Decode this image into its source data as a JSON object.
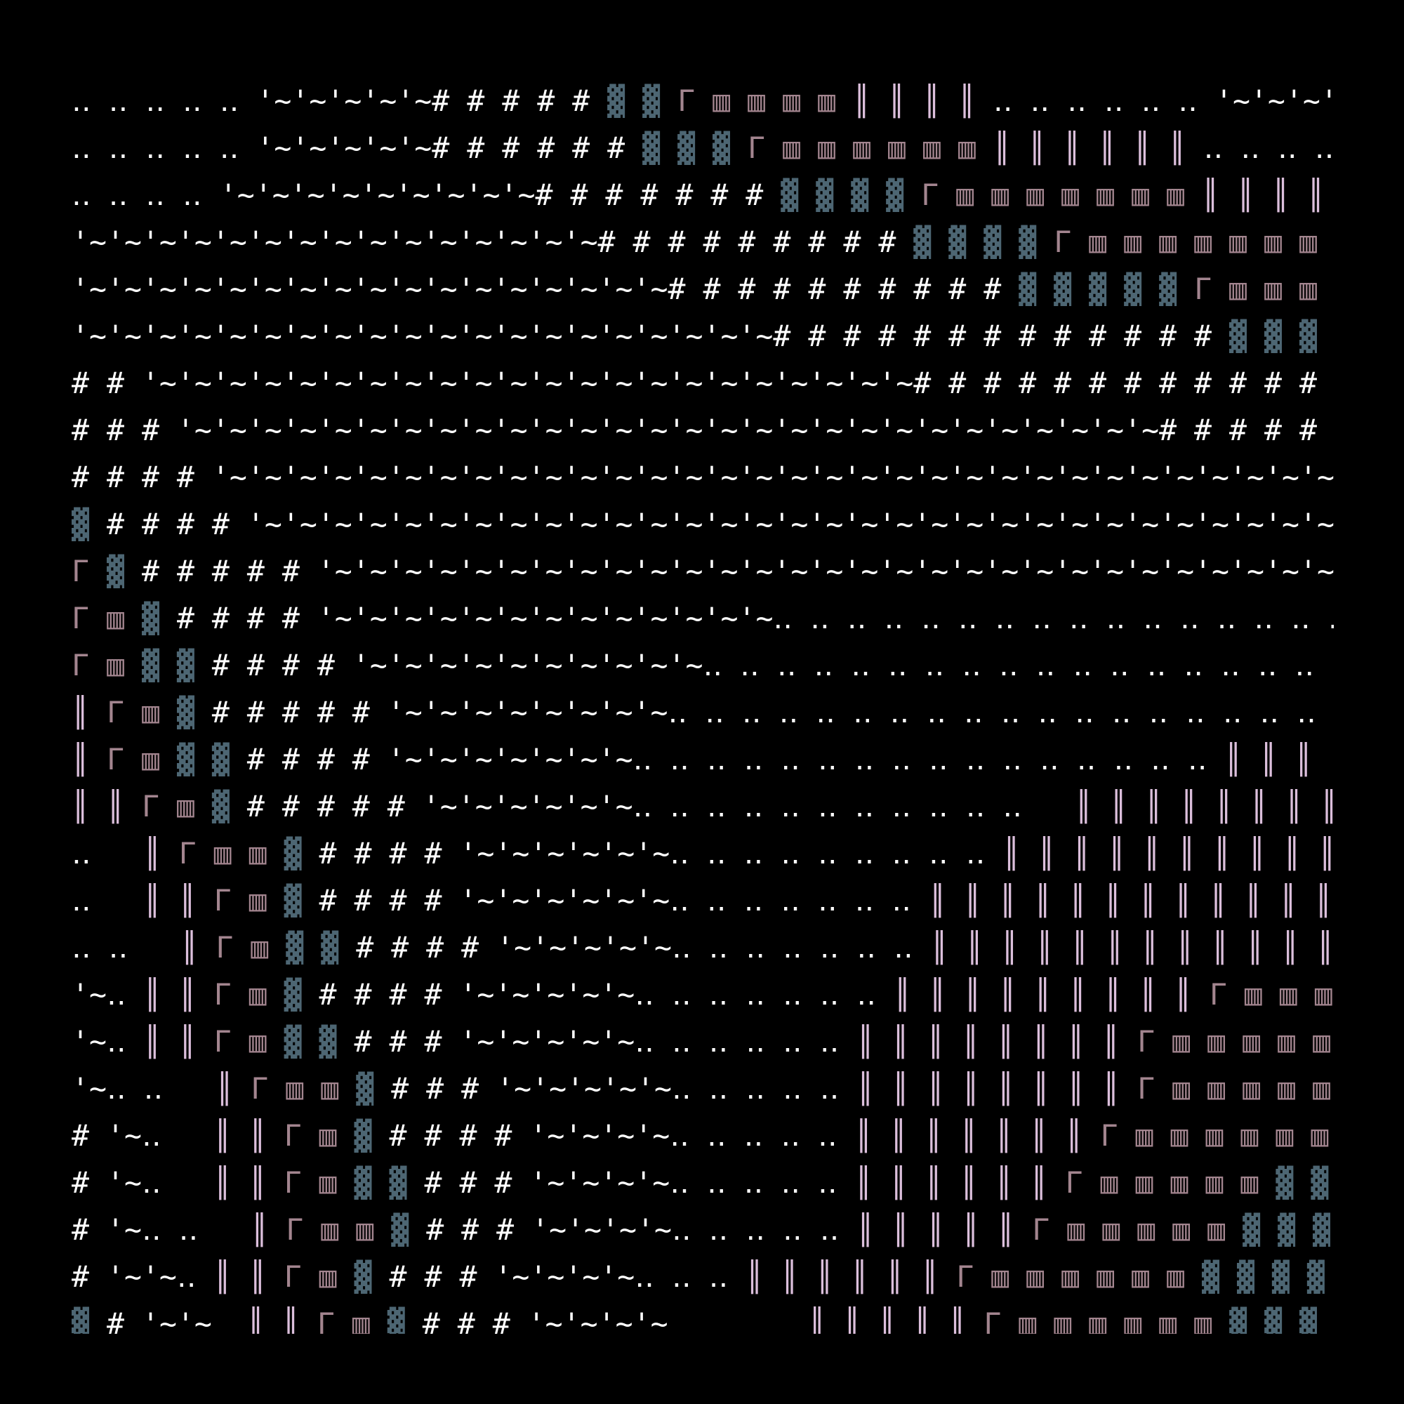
{
  "map": {
    "rows": [
      "‥ ‥ ‥ ‥ ‥ '~'~'~'~'~# # # # # ▓ ▓ Γ ▥ ▥ ▥ ▥ ║ ║ ║ ║ ‥ ‥ ‥ ‥ ‥ ‥ '~'~'~'~",
      "‥ ‥ ‥ ‥ ‥ '~'~'~'~'~# # # # # # ▓ ▓ ▓ Γ ▥ ▥ ▥ ▥ ▥ ▥ ║ ║ ║ ║ ║ ║ ‥ ‥ ‥ ‥ ",
      "‥ ‥ ‥ ‥ '~'~'~'~'~'~'~'~'~# # # # # # # ▓ ▓ ▓ ▓ Γ ▥ ▥ ▥ ▥ ▥ ▥ ▥ ║ ║ ║ ║ ",
      "'~'~'~'~'~'~'~'~'~'~'~'~'~'~'~# # # # # # # # # ▓ ▓ ▓ ▓ Γ ▥ ▥ ▥ ▥ ▥ ▥ ▥ ",
      "'~'~'~'~'~'~'~'~'~'~'~'~'~'~'~'~'~# # # # # # # # # # ▓ ▓ ▓ ▓ ▓ Γ ▥ ▥ ▥ ",
      "'~'~'~'~'~'~'~'~'~'~'~'~'~'~'~'~'~'~'~'~# # # # # # # # # # # # # ▓ ▓ ▓ ",
      "# # '~'~'~'~'~'~'~'~'~'~'~'~'~'~'~'~'~'~'~'~'~'~# # # # # # # # # # # # ",
      "# # # '~'~'~'~'~'~'~'~'~'~'~'~'~'~'~'~'~'~'~'~'~'~'~'~'~'~'~'~# # # # # ",
      "# # # # '~'~'~'~'~'~'~'~'~'~'~'~'~'~'~'~'~'~'~'~'~'~'~'~'~'~'~'~'~'~'~'~",
      "▓ # # # # '~'~'~'~'~'~'~'~'~'~'~'~'~'~'~'~'~'~'~'~'~'~'~'~'~'~'~'~'~'~'~",
      "Γ ▓ # # # # # '~'~'~'~'~'~'~'~'~'~'~'~'~'~'~'~'~'~'~'~'~'~'~'~'~'~'~'~'~",
      "Γ ▥ ▓ # # # # '~'~'~'~'~'~'~'~'~'~'~'~'~‥ ‥ ‥ ‥ ‥ ‥ ‥ ‥ ‥ ‥ ‥ ‥ ‥ ‥ ‥ ‥ ",
      "Γ ▥ ▓ ▓ # # # # '~'~'~'~'~'~'~'~'~'~‥ ‥ ‥ ‥ ‥ ‥ ‥ ‥ ‥ ‥ ‥ ‥ ‥ ‥ ‥ ‥ ‥ ‥ ",
      "║ Γ ▥ ▓ # # # # # '~'~'~'~'~'~'~'~‥ ‥ ‥ ‥ ‥ ‥ ‥ ‥ ‥ ‥ ‥ ‥ ‥ ‥ ‥ ‥ ‥ ‥ ‥ ",
      "║ Γ ▥ ▓ ▓ # # # # '~'~'~'~'~'~'~‥ ‥ ‥ ‥ ‥ ‥ ‥ ‥ ‥ ‥ ‥ ‥ ‥ ‥ ‥ ‥ ║ ║ ║ ║ ",
      "║ ║ Γ ▥ ▓ # # # # # '~'~'~'~'~'~‥ ‥ ‥ ‥ ‥ ‥ ‥ ‥ ‥ ‥ ‥   ║ ║ ║ ║ ║ ║ ║ ║ ",
      "‥   ║ Γ ▥ ▥ ▓ # # # # '~'~'~'~'~'~‥ ‥ ‥ ‥ ‥ ‥ ‥ ‥ ‥ ║ ║ ║ ║ ║ ║ ║ ║ ║ ║ ",
      "‥   ║ ║ Γ ▥ ▓ # # # # '~'~'~'~'~'~‥ ‥ ‥ ‥ ‥ ‥ ‥ ║ ║ ║ ║ ║ ║ ║ ║ ║ ║ ║ ║ ",
      "‥ ‥   ║ Γ ▥ ▓ ▓ # # # # '~'~'~'~'~‥ ‥ ‥ ‥ ‥ ‥ ‥ ║ ║ ║ ║ ║ ║ ║ ║ ║ ║ ║ ║ ",
      "'~‥ ║ ║ Γ ▥ ▓ # # # # '~'~'~'~'~‥ ‥ ‥ ‥ ‥ ‥ ‥ ║ ║ ║ ║ ║ ║ ║ ║ ║ Γ ▥ ▥ ▥ ",
      "'~‥ ║ ║ Γ ▥ ▓ ▓ # # # '~'~'~'~'~‥ ‥ ‥ ‥ ‥ ‥ ║ ║ ║ ║ ║ ║ ║ ║ Γ ▥ ▥ ▥ ▥ ▥ ",
      "'~‥ ‥   ║ Γ ▥ ▥ ▓ # # # '~'~'~'~'~‥ ‥ ‥ ‥ ‥ ║ ║ ║ ║ ║ ║ ║ ║ Γ ▥ ▥ ▥ ▥ ▥ ",
      "# '~‥   ║ ║ Γ ▥ ▓ # # # # '~'~'~'~‥ ‥ ‥ ‥ ‥ ║ ║ ║ ║ ║ ║ ║ Γ ▥ ▥ ▥ ▥ ▥ ▥ ",
      "# '~‥   ║ ║ Γ ▥ ▓ ▓ # # # '~'~'~'~‥ ‥ ‥ ‥ ‥ ║ ║ ║ ║ ║ ║ Γ ▥ ▥ ▥ ▥ ▥ ▓ ▓ ",
      "# '~‥ ‥   ║ Γ ▥ ▥ ▓ # # # '~'~'~'~‥ ‥ ‥ ‥ ‥ ║ ║ ║ ║ ║ Γ ▥ ▥ ▥ ▥ ▥ ▓ ▓ ▓ ",
      "# '~'~‥ ║ ║ Γ ▥ ▓ # # # '~'~'~'~‥ ‥ ‥ ║ ║ ║ ║ ║ ║ Γ ▥ ▥ ▥ ▥ ▥ ▥ ▓ ▓ ▓ ▓ ",
      "▓ # '~'~  ║ ║ Γ ▥ ▓ # # # '~'~'~'~        ║ ║ ║ ║ ║ Γ ▥ ▥ ▥ ▥ ▥ ▥ ▓ ▓ ▓ ▓ "
    ]
  }
}
